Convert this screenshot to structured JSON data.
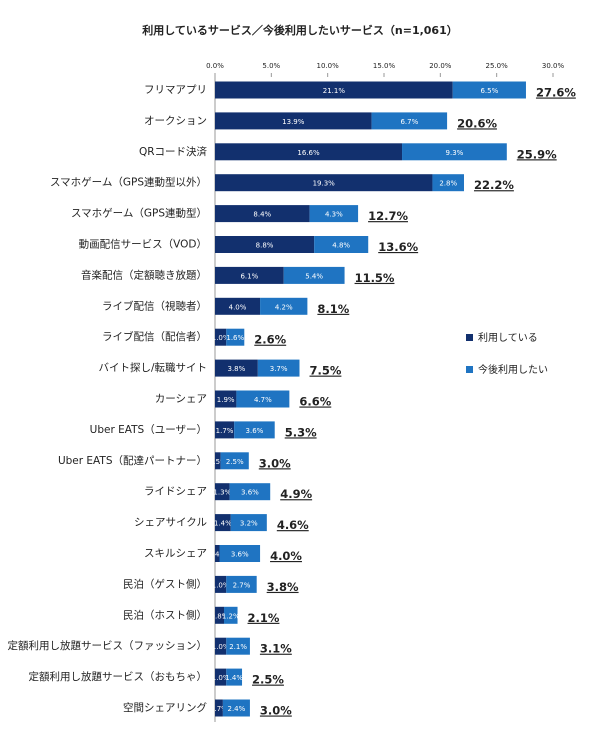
{
  "chart_data": {
    "type": "bar",
    "orientation": "horizontal",
    "stacked": true,
    "title": "利用しているサービス／今後利用したいサービス（n=1,061）",
    "categories": [
      "フリマアプリ",
      "オークション",
      "QRコード決済",
      "スマホゲーム（GPS連動型以外）",
      "スマホゲーム（GPS連動型）",
      "動画配信サービス（VOD）",
      "音楽配信（定額聴き放題）",
      "ライブ配信（視聴者）",
      "ライブ配信（配信者）",
      "バイト探し/転職サイト",
      "カーシェア",
      "Uber EATS（ユーザー）",
      "Uber EATS（配達パートナー）",
      "ライドシェア",
      "シェアサイクル",
      "スキルシェア",
      "民泊（ゲスト側）",
      "民泊（ホスト側）",
      "定額利用し放題サービス（ファッション）",
      "定額利用し放題サービス（おもちゃ）",
      "空間シェアリング"
    ],
    "series": [
      {
        "name": "利用している",
        "color": "#12306e",
        "values": [
          21.1,
          13.9,
          16.6,
          19.3,
          8.4,
          8.8,
          6.1,
          4.0,
          1.0,
          3.8,
          1.9,
          1.7,
          0.5,
          1.3,
          1.4,
          0.4,
          1.0,
          0.8,
          1.0,
          1.0,
          0.7
        ],
        "value_labels": [
          "21.1%",
          "13.9%",
          "16.6%",
          "19.3%",
          "8.4%",
          "8.8%",
          "6.1%",
          "4.0%",
          "1.0%",
          "3.8%",
          "1.9%",
          "1.7%",
          "0.5%",
          "1.3%",
          "1.4%",
          "0.4%",
          "1.0%",
          "0.8%",
          "1.0%",
          "1.0%",
          "0.7%"
        ]
      },
      {
        "name": "今後利用したい",
        "color": "#1f74c2",
        "values": [
          6.5,
          6.7,
          9.3,
          2.8,
          4.3,
          4.8,
          5.4,
          4.2,
          1.6,
          3.7,
          4.7,
          3.6,
          2.5,
          3.6,
          3.2,
          3.6,
          2.7,
          1.2,
          2.1,
          1.4,
          2.4
        ],
        "value_labels": [
          "6.5%",
          "6.7%",
          "9.3%",
          "2.8%",
          "4.3%",
          "4.8%",
          "5.4%",
          "4.2%",
          "1.6%",
          "3.7%",
          "4.7%",
          "3.6%",
          "2.5%",
          "3.6%",
          "3.2%",
          "3.6%",
          "2.7%",
          "1.2%",
          "2.1%",
          "1.4%",
          "2.4%"
        ]
      }
    ],
    "totals": [
      27.6,
      20.6,
      25.9,
      22.2,
      12.7,
      13.6,
      11.5,
      8.1,
      2.6,
      7.5,
      6.6,
      5.3,
      3.0,
      4.9,
      4.6,
      4.0,
      3.8,
      2.1,
      3.1,
      2.5,
      3.0
    ],
    "total_labels": [
      "27.6%",
      "20.6%",
      "25.9%",
      "22.2%",
      "12.7%",
      "13.6%",
      "11.5%",
      "8.1%",
      "2.6%",
      "7.5%",
      "6.6%",
      "5.3%",
      "3.0%",
      "4.9%",
      "4.6%",
      "4.0%",
      "3.8%",
      "2.1%",
      "3.1%",
      "2.5%",
      "3.0%"
    ],
    "xlim": [
      0,
      30
    ],
    "xticks": [
      {
        "value": 0,
        "label": "0.0%"
      },
      {
        "value": 5,
        "label": "5.0%"
      },
      {
        "value": 10,
        "label": "10.0%"
      },
      {
        "value": 15,
        "label": "15.0%"
      },
      {
        "value": 20,
        "label": "20.0%"
      },
      {
        "value": 25,
        "label": "25.0%"
      },
      {
        "value": 30,
        "label": "30.0%"
      }
    ],
    "legend": "right"
  }
}
